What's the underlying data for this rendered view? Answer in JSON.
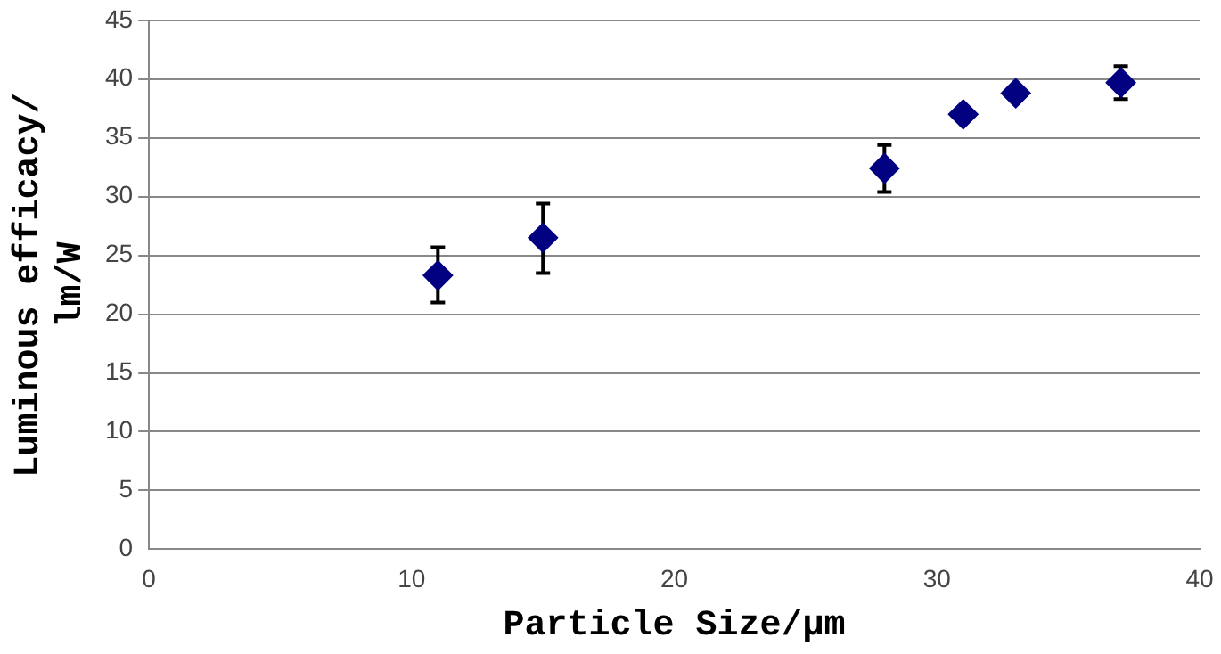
{
  "chart_data": {
    "type": "scatter",
    "xlabel": "Particle Size/μm",
    "ylabel": "Luminous efficacy/\nlm/W",
    "x": [
      11,
      15,
      28,
      31,
      33,
      37
    ],
    "series": [
      {
        "color": "#000080",
        "values": [
          23.3,
          26.5,
          32.4,
          37,
          38.8,
          39.7
        ],
        "errors": [
          [
            21,
            25.7
          ],
          [
            23.5,
            29.4
          ],
          [
            30.4,
            34.4
          ],
          null,
          null,
          1.4
        ]
      }
    ],
    "xlim": [
      0,
      40
    ],
    "xticks": [
      0,
      10,
      20,
      30,
      40
    ],
    "ylim": [
      0,
      45
    ],
    "yticks": [
      0,
      5,
      10,
      15,
      20,
      25,
      30,
      35,
      40,
      45
    ],
    "grid": "y",
    "legend": false,
    "marker": "diamond"
  }
}
